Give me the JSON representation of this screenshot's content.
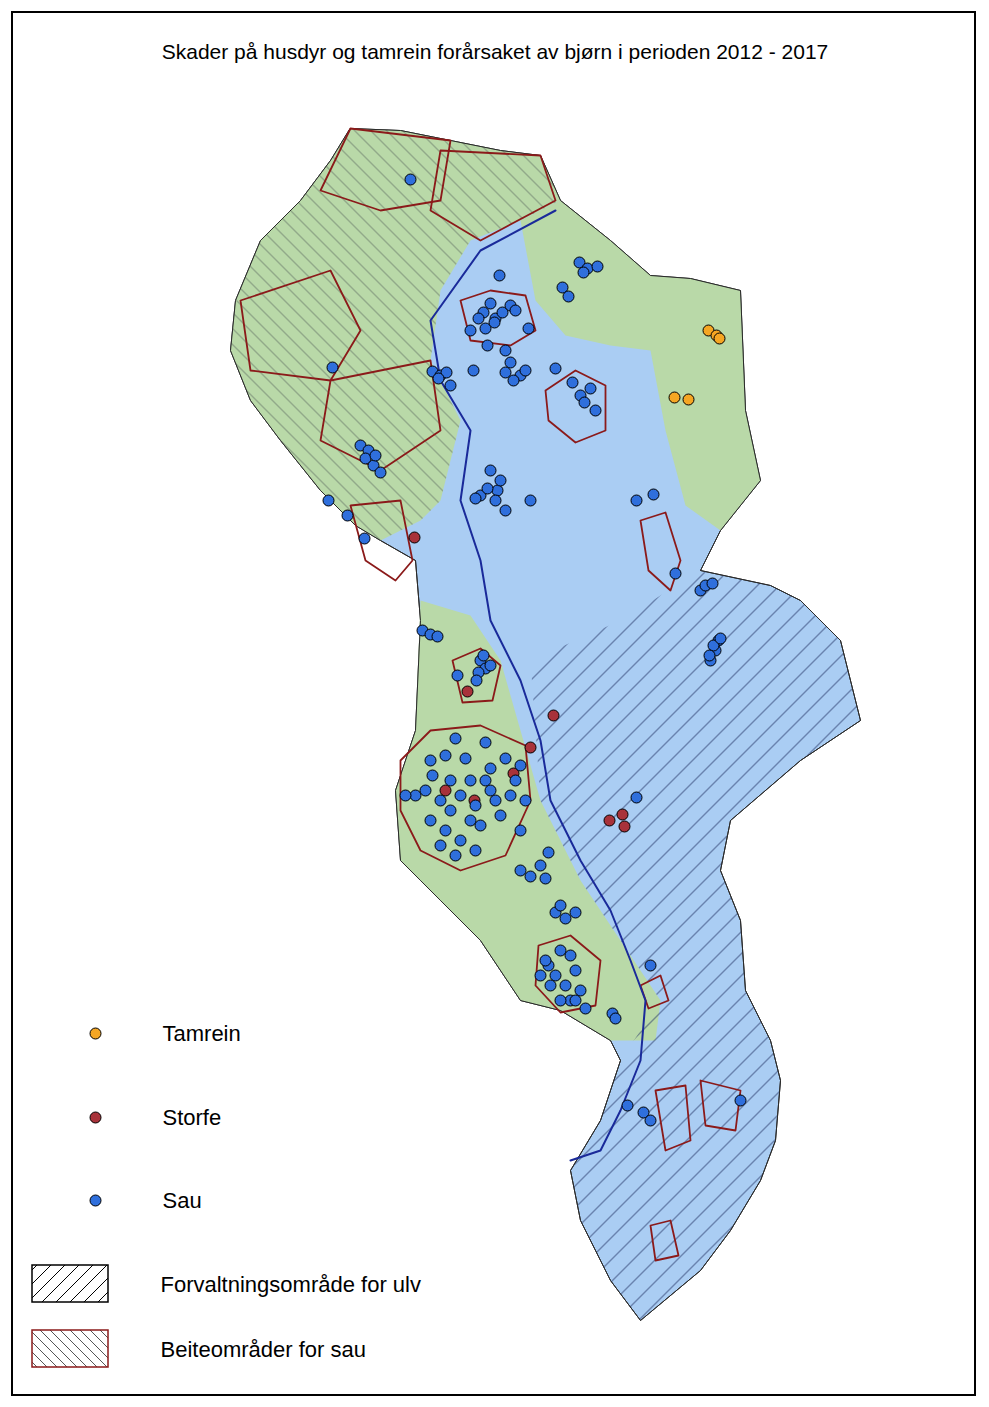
{
  "chart_data": {
    "type": "map",
    "title": "Skader på husdyr og tamrein forårsaket av bjørn i perioden 2012 - 2017",
    "tick_labels": false,
    "series": [
      {
        "name": "Tamrein",
        "color": "#f5a623",
        "marker": "circle",
        "x": [
          708,
          716,
          719,
          674,
          688
        ],
        "y": [
          330,
          335,
          338,
          397,
          399
        ]
      },
      {
        "name": "Storfe",
        "color": "#a8323a",
        "marker": "circle",
        "x": [
          414,
          467,
          553,
          530,
          513,
          445,
          474,
          609,
          622,
          624
        ],
        "y": [
          537,
          691,
          715,
          747,
          773,
          790,
          800,
          820,
          814,
          826
        ]
      },
      {
        "name": "Sau",
        "color": "#2f6fdc",
        "marker": "circle",
        "x": [
          410,
          499,
          579,
          587,
          597,
          583,
          562,
          568,
          490,
          483,
          495,
          502,
          510,
          515,
          470,
          485,
          494,
          478,
          528,
          487,
          505,
          432,
          440,
          446,
          450,
          438,
          473,
          510,
          520,
          513,
          525,
          505,
          555,
          572,
          580,
          584,
          595,
          590,
          332,
          360,
          368,
          373,
          380,
          365,
          375,
          490,
          497,
          480,
          487,
          495,
          505,
          475,
          500,
          530,
          328,
          347,
          364,
          636,
          653,
          675,
          700,
          705,
          712,
          710,
          715,
          718,
          713,
          720,
          709,
          422,
          430,
          437,
          480,
          485,
          478,
          490,
          457,
          476,
          483,
          636,
          455,
          485,
          430,
          445,
          465,
          490,
          505,
          520,
          415,
          405,
          425,
          440,
          450,
          460,
          475,
          495,
          510,
          525,
          430,
          445,
          460,
          470,
          480,
          500,
          520,
          455,
          475,
          440,
          490,
          432,
          470,
          450,
          485,
          515,
          520,
          530,
          545,
          540,
          548,
          555,
          565,
          575,
          560,
          560,
          570,
          548,
          555,
          565,
          575,
          550,
          545,
          570,
          585,
          580,
          540,
          560,
          575,
          612,
          615,
          650,
          627,
          643,
          650,
          740
        ],
        "y": [
          179,
          275,
          262,
          268,
          266,
          272,
          287,
          296,
          303,
          312,
          318,
          312,
          305,
          310,
          330,
          328,
          322,
          318,
          328,
          345,
          350,
          371,
          375,
          372,
          385,
          378,
          370,
          362,
          375,
          380,
          370,
          372,
          368,
          382,
          395,
          402,
          410,
          388,
          367,
          445,
          450,
          465,
          472,
          458,
          455,
          470,
          490,
          495,
          488,
          500,
          510,
          498,
          480,
          500,
          500,
          515,
          538,
          500,
          494,
          573,
          590,
          585,
          583,
          660,
          650,
          640,
          645,
          638,
          655,
          630,
          634,
          636,
          660,
          668,
          672,
          665,
          675,
          680,
          655,
          797,
          738,
          742,
          760,
          755,
          758,
          768,
          758,
          765,
          795,
          795,
          790,
          800,
          810,
          795,
          805,
          800,
          795,
          800,
          820,
          830,
          840,
          820,
          825,
          815,
          830,
          855,
          850,
          845,
          790,
          775,
          780,
          780,
          780,
          780,
          870,
          876,
          878,
          865,
          852,
          912,
          918,
          912,
          905,
          950,
          955,
          965,
          975,
          985,
          970,
          985,
          960,
          1000,
          1008,
          990,
          975,
          1000,
          1000,
          1013,
          1018,
          965,
          1105,
          1112,
          1120,
          1100
        ]
      }
    ],
    "areas": [
      {
        "name": "Forvaltningsområde for ulv"
      },
      {
        "name": "Beiteområder for sau"
      }
    ]
  }
}
